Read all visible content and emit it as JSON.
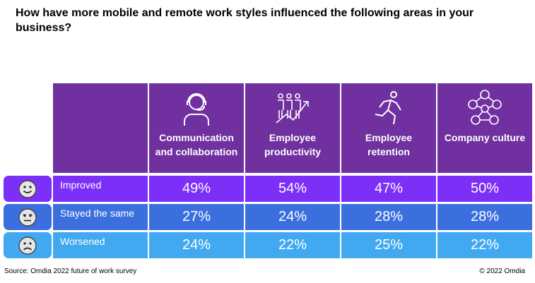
{
  "title": "How have more mobile and remote work styles influenced the following areas in your business?",
  "chart_data": {
    "type": "table",
    "columns": [
      {
        "label": "Communication and collaboration",
        "icon": "headset-person-icon"
      },
      {
        "label": "Employee productivity",
        "icon": "productivity-people-icon"
      },
      {
        "label": "Employee retention",
        "icon": "running-person-icon"
      },
      {
        "label": "Company culture",
        "icon": "network-people-icon"
      }
    ],
    "rows": [
      {
        "label": "Improved",
        "icon": "happy-face-icon",
        "color": "#7b2ff7",
        "values": [
          "49%",
          "54%",
          "47%",
          "50%"
        ]
      },
      {
        "label": "Stayed the same",
        "icon": "neutral-face-icon",
        "color": "#3c6fde",
        "values": [
          "27%",
          "24%",
          "28%",
          "28%"
        ]
      },
      {
        "label": "Worsened",
        "icon": "sad-face-icon",
        "color": "#41a9f0",
        "values": [
          "24%",
          "22%",
          "25%",
          "22%"
        ]
      }
    ],
    "header_color": "#7030a0"
  },
  "footer": {
    "source": "Source: Omdia 2022 future of work survey",
    "copyright": "© 2022 Omdia"
  }
}
